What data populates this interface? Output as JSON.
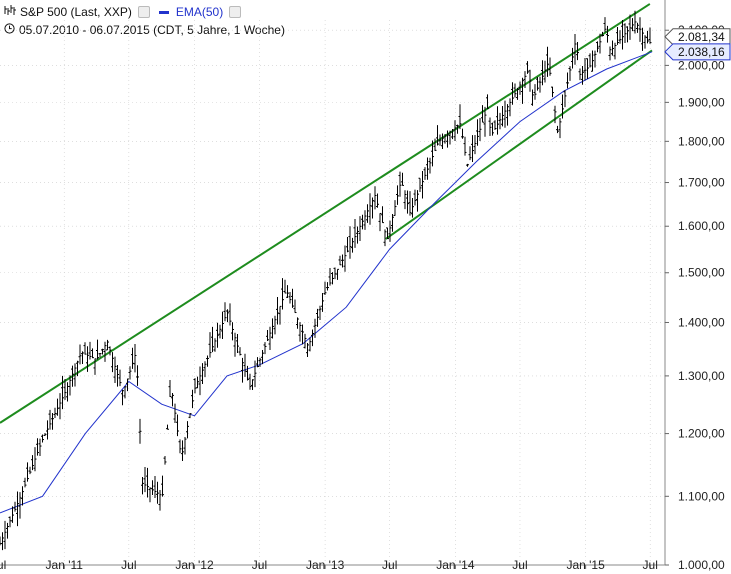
{
  "legend": {
    "icon": "bar-chart-icon",
    "series_label": "S&P 500 (Last, XXP)",
    "ema_label": "EMA(50)",
    "clock_icon": "clock-icon",
    "period": "05.07.2010 - 06.07.2015 (CDT, 5 Jahre, 1 Woche)"
  },
  "value_boxes": {
    "last": "2.081,34",
    "ema": "2.038,16"
  },
  "colors": {
    "price": "#000000",
    "ema": "#2233cc",
    "trend": "#1e8c1e",
    "grid": "#cccccc"
  },
  "chart_data": {
    "type": "line",
    "x_range": [
      "2010-07-05",
      "2015-07-06"
    ],
    "y_range": [
      1000,
      2130
    ],
    "y_scale": "log",
    "x_ticks": [
      {
        "date": "2010-07-01",
        "label": "Jul"
      },
      {
        "date": "2011-01-01",
        "label": "Jan '11"
      },
      {
        "date": "2011-07-01",
        "label": "Jul"
      },
      {
        "date": "2012-01-01",
        "label": "Jan '12"
      },
      {
        "date": "2012-07-01",
        "label": "Jul"
      },
      {
        "date": "2013-01-01",
        "label": "Jan '13"
      },
      {
        "date": "2013-07-01",
        "label": "Jul"
      },
      {
        "date": "2014-01-01",
        "label": "Jan '14"
      },
      {
        "date": "2014-07-01",
        "label": "Jul"
      },
      {
        "date": "2015-01-01",
        "label": "Jan '15"
      },
      {
        "date": "2015-07-01",
        "label": "Jul"
      }
    ],
    "y_ticks": [
      {
        "value": 1000,
        "label": "1.000,00"
      },
      {
        "value": 1100,
        "label": "1.100,00"
      },
      {
        "value": 1200,
        "label": "1.200,00"
      },
      {
        "value": 1300,
        "label": "1.300,00"
      },
      {
        "value": 1400,
        "label": "1.400,00"
      },
      {
        "value": 1500,
        "label": "1.500,00"
      },
      {
        "value": 1600,
        "label": "1.600,00"
      },
      {
        "value": 1700,
        "label": "1.700,00"
      },
      {
        "value": 1800,
        "label": "1.800,00"
      },
      {
        "value": 1900,
        "label": "1.900,00"
      },
      {
        "value": 2000,
        "label": "2.000,00"
      },
      {
        "value": 2100,
        "label": "2.100,00"
      }
    ],
    "series": [
      {
        "name": "S&P 500",
        "x": [
          "2010-07-05",
          "2010-09-01",
          "2010-11-01",
          "2011-01-03",
          "2011-02-18",
          "2011-04-01",
          "2011-05-02",
          "2011-06-15",
          "2011-07-22",
          "2011-08-08",
          "2011-10-03",
          "2011-10-27",
          "2011-11-25",
          "2012-01-03",
          "2012-04-02",
          "2012-06-04",
          "2012-09-14",
          "2012-11-15",
          "2013-01-02",
          "2013-03-15",
          "2013-05-21",
          "2013-06-24",
          "2013-08-02",
          "2013-08-27",
          "2013-11-15",
          "2014-01-15",
          "2014-02-03",
          "2014-04-01",
          "2014-04-11",
          "2014-07-24",
          "2014-08-07",
          "2014-09-19",
          "2014-10-15",
          "2014-12-05",
          "2014-12-16",
          "2015-01-15",
          "2015-02-27",
          "2015-03-11",
          "2015-05-20",
          "2015-06-29",
          "2015-07-06"
        ],
        "values": [
          1030,
          1100,
          1190,
          1270,
          1343,
          1330,
          1363,
          1270,
          1345,
          1120,
          1100,
          1285,
          1160,
          1280,
          1420,
          1280,
          1465,
          1353,
          1462,
          1560,
          1670,
          1570,
          1705,
          1630,
          1800,
          1845,
          1740,
          1885,
          1815,
          1985,
          1910,
          2010,
          1820,
          2075,
          1975,
          2000,
          2110,
          2040,
          2125,
          2060,
          2081
        ]
      },
      {
        "name": "EMA(50)",
        "x": [
          "2010-07-05",
          "2010-11-01",
          "2011-03-01",
          "2011-07-01",
          "2011-10-01",
          "2012-01-01",
          "2012-04-01",
          "2012-07-01",
          "2012-11-01",
          "2013-03-01",
          "2013-07-01",
          "2013-11-01",
          "2014-03-01",
          "2014-07-01",
          "2014-11-01",
          "2015-03-01",
          "2015-07-06"
        ],
        "values": [
          1075,
          1100,
          1200,
          1290,
          1250,
          1230,
          1300,
          1320,
          1360,
          1430,
          1550,
          1650,
          1750,
          1850,
          1930,
          1990,
          2038
        ]
      }
    ]
  },
  "annotations": {
    "trend_upper": {
      "from": {
        "date": "2010-07-05",
        "value": 1218
      },
      "to": {
        "date": "2015-06-30",
        "value": 2178
      }
    },
    "trend_lower": {
      "from": {
        "date": "2013-06-20",
        "value": 1572
      },
      "to": {
        "date": "2015-07-06",
        "value": 2042
      }
    }
  }
}
